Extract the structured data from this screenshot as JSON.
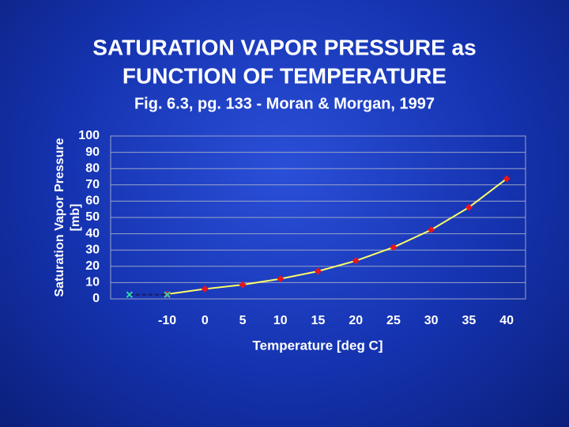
{
  "chart_data": {
    "type": "line",
    "title": [
      "SATURATION VAPOR PRESSURE as",
      "FUNCTION OF TEMPERATURE"
    ],
    "subtitle": "Fig. 6.3, pg. 133 - Moran & Morgan, 1997",
    "y_label": [
      "Saturation Vapor Pressure",
      "[mb]"
    ],
    "x_label": "Temperature [deg C]",
    "categories": [
      null,
      "-10",
      "0",
      "5",
      "10",
      "15",
      "20",
      "25",
      "30",
      "35",
      "40"
    ],
    "series": [
      {
        "color": "#ffff66",
        "marker_color": "#e8141c",
        "marker": "diamond",
        "dash": false,
        "values": [
          null,
          2.9,
          6.1,
          8.7,
          12.3,
          17.0,
          23.4,
          31.7,
          42.4,
          56.2,
          73.8
        ]
      },
      {
        "color": "#1a1a60",
        "marker_color": "#2fd0b0",
        "marker": "x",
        "dash": true,
        "values": [
          2.6,
          2.6,
          null,
          null,
          null,
          null,
          null,
          null,
          null,
          null,
          null
        ]
      }
    ],
    "ylim": [
      0,
      100
    ],
    "yticks": [
      0,
      10,
      20,
      30,
      40,
      50,
      60,
      70,
      80,
      90,
      100
    ],
    "grid": true
  }
}
